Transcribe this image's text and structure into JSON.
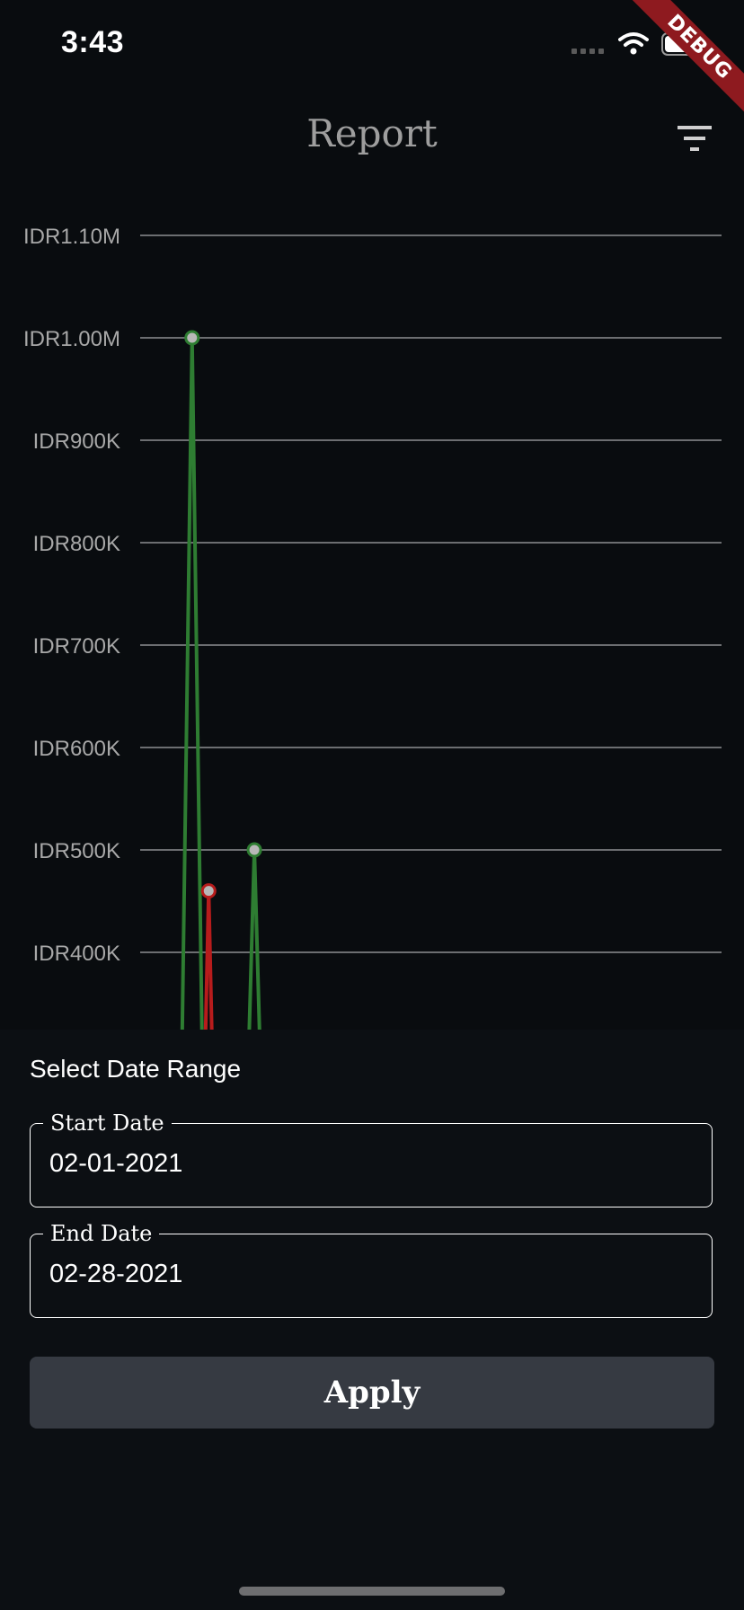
{
  "status_bar": {
    "time": "3:43"
  },
  "debug_banner": "DEBUG",
  "header": {
    "title": "Report",
    "filter_icon": "filter-icon"
  },
  "chart_data": {
    "type": "line",
    "y_ticks": [
      {
        "value": 1100000,
        "label": "IDR1.10M"
      },
      {
        "value": 1000000,
        "label": "IDR1.00M"
      },
      {
        "value": 900000,
        "label": "IDR900K"
      },
      {
        "value": 800000,
        "label": "IDR800K"
      },
      {
        "value": 700000,
        "label": "IDR700K"
      },
      {
        "value": 600000,
        "label": "IDR600K"
      },
      {
        "value": 500000,
        "label": "IDR500K"
      },
      {
        "value": 400000,
        "label": "IDR400K"
      }
    ],
    "visible_y_range": [
      330000,
      1170000
    ],
    "x_range": [
      0,
      28
    ],
    "grid": true,
    "series": [
      {
        "color": "#2e7d32",
        "points": [
          {
            "x": 1.8,
            "y": 0
          },
          {
            "x": 2.5,
            "y": 1000000
          },
          {
            "x": 3.2,
            "y": 0
          },
          {
            "x": 4.8,
            "y": 0
          },
          {
            "x": 5.5,
            "y": 500000
          },
          {
            "x": 6.2,
            "y": 0
          }
        ],
        "markers": [
          1,
          4
        ]
      },
      {
        "color": "#b71c1c",
        "points": [
          {
            "x": 2.8,
            "y": 0
          },
          {
            "x": 3.3,
            "y": 460000
          },
          {
            "x": 3.8,
            "y": 0
          }
        ],
        "markers": [
          1
        ]
      }
    ]
  },
  "date_range": {
    "title": "Select Date Range",
    "start_label": "Start Date",
    "start_value": "02-01-2021",
    "end_label": "End Date",
    "end_value": "02-28-2021",
    "apply_label": "Apply"
  }
}
